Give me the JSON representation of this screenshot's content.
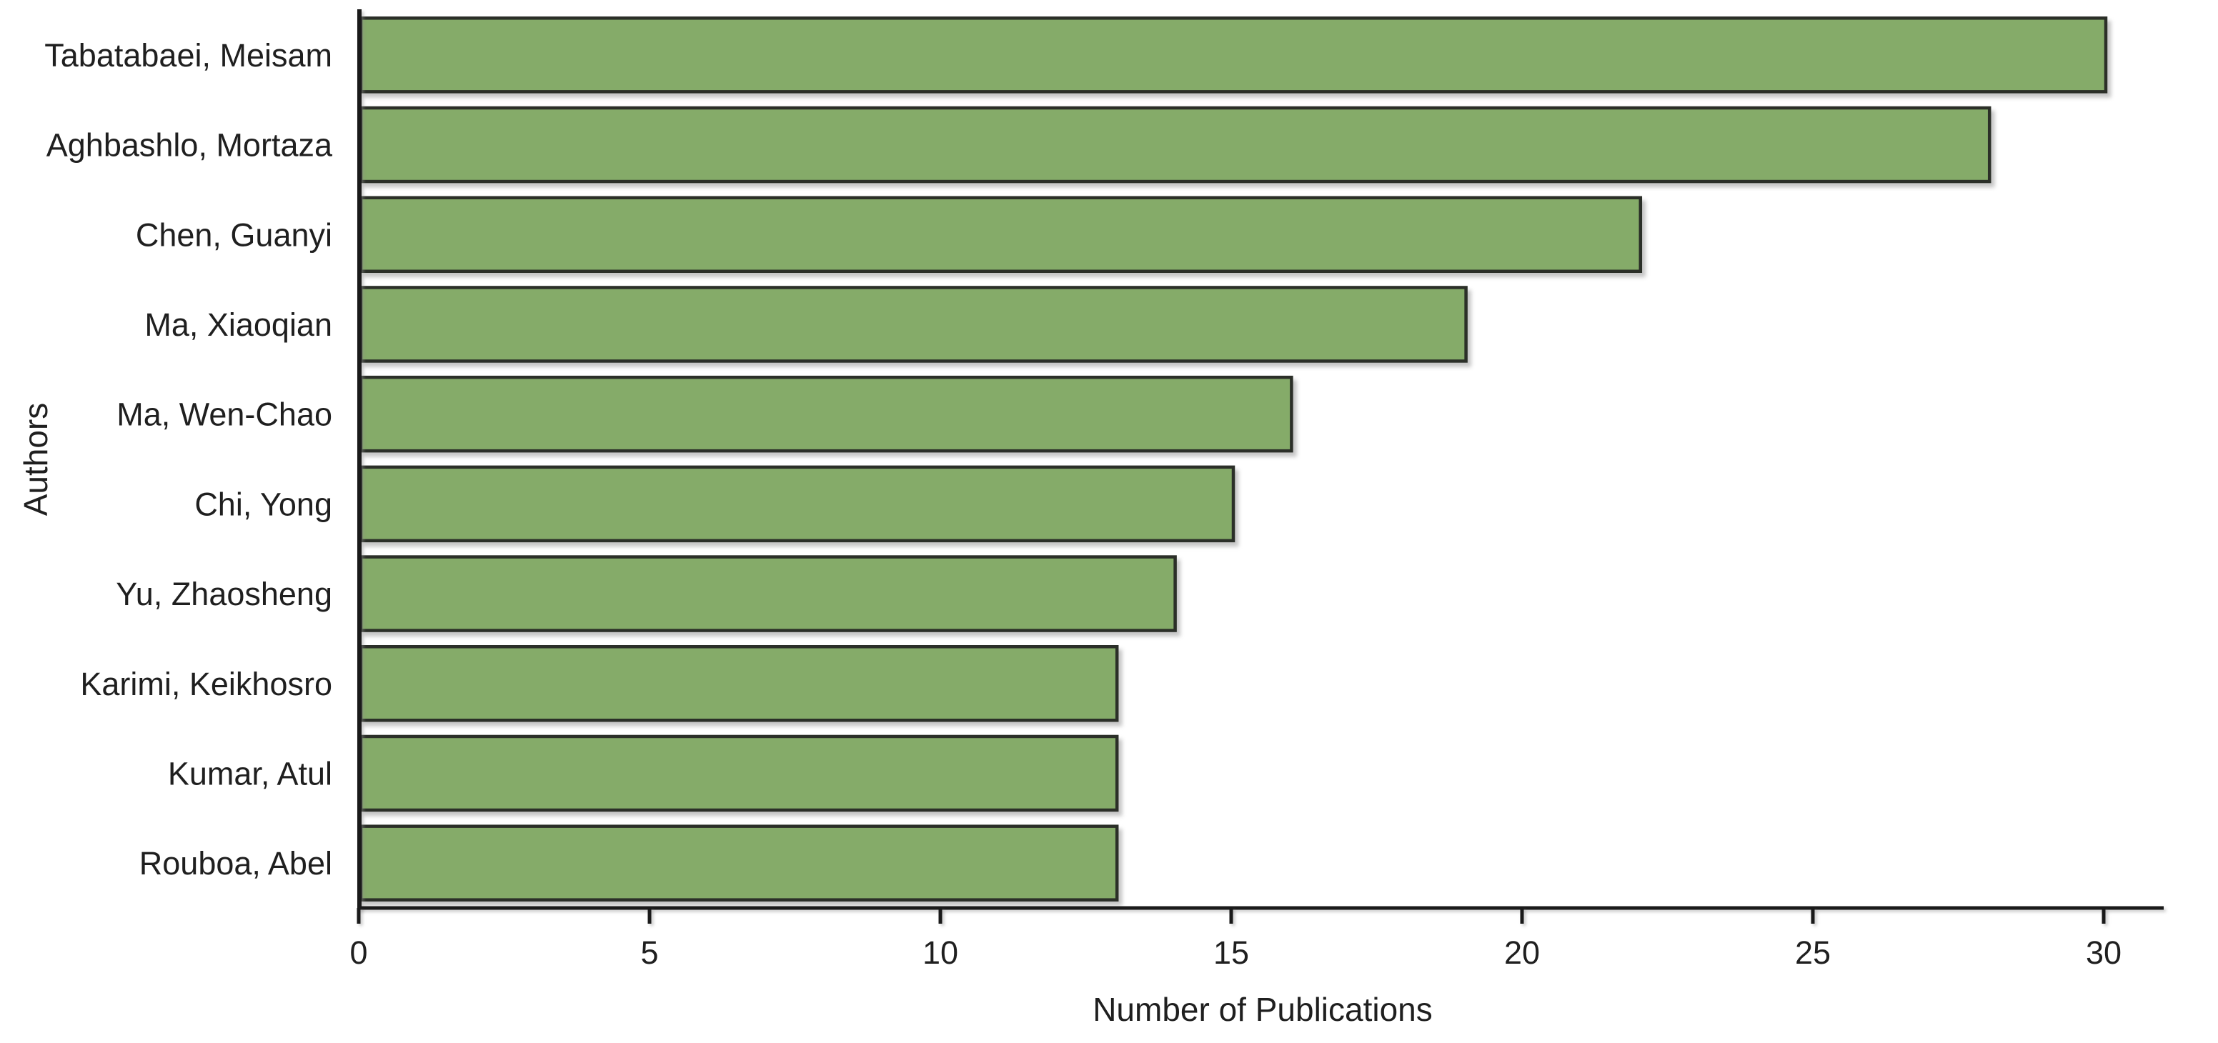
{
  "chart_data": {
    "type": "bar",
    "orientation": "horizontal",
    "title": "",
    "xlabel": "Number of Publications",
    "ylabel": "Authors",
    "categories": [
      "Tabatabaei, Meisam",
      "Aghbashlo, Mortaza",
      "Chen, Guanyi",
      "Ma, Xiaoqian",
      "Ma, Wen-Chao",
      "Chi, Yong",
      "Yu, Zhaosheng",
      "Karimi, Keikhosro",
      "Kumar, Atul",
      "Rouboa, Abel"
    ],
    "values": [
      30,
      28,
      22,
      19,
      16,
      15,
      14,
      13,
      13,
      13
    ],
    "xlim": [
      0,
      31
    ],
    "xticks": [
      0,
      5,
      10,
      15,
      20,
      25,
      30
    ],
    "grid": false,
    "legend": "none",
    "colors": {
      "bar_fill": "#85ab69",
      "bar_border": "#2b2f28",
      "axis": "#1a1a1a",
      "text": "#1f1f1f",
      "background": "#ffffff"
    }
  }
}
